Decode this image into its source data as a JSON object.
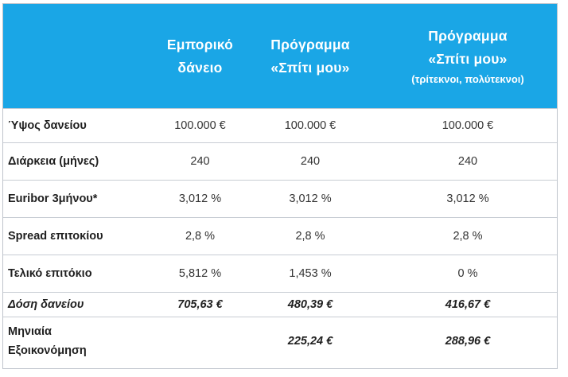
{
  "table": {
    "headers": [
      {
        "lines": [
          "",
          ""
        ],
        "sub": ""
      },
      {
        "lines": [
          "Εμπορικό",
          "δάνειο"
        ],
        "sub": ""
      },
      {
        "lines": [
          "Πρόγραμμα",
          "«Σπίτι μου»"
        ],
        "sub": ""
      },
      {
        "lines": [
          "Πρόγραμμα",
          "«Σπίτι μου»"
        ],
        "sub": "(τρίτεκνοι, πολύτεκνοι)"
      }
    ],
    "rows": [
      {
        "label": "Ύψος δανείου",
        "values": [
          "100.000 €",
          "100.000 €",
          "100.000 €"
        ]
      },
      {
        "label": "Διάρκεια (μήνες)",
        "values": [
          "240",
          "240",
          "240"
        ]
      },
      {
        "label": "Euribor 3μήνου*",
        "values": [
          "3,012 %",
          "3,012 %",
          "3,012 %"
        ]
      },
      {
        "label": "Spread επιτοκίου",
        "values": [
          "2,8 %",
          "2,8 %",
          "2,8 %"
        ]
      },
      {
        "label": "Τελικό επιτόκιο",
        "values": [
          "5,812 %",
          "1,453 %",
          "0 %"
        ]
      },
      {
        "label": "Δόση δανείου",
        "values": [
          "705,63 €",
          "480,39 €",
          "416,67 €"
        ]
      },
      {
        "label_lines": [
          "Μηνιαία",
          "Εξοικονόμηση"
        ],
        "values": [
          "",
          "225,24 €",
          "288,96 €"
        ]
      }
    ]
  },
  "colors": {
    "header_bg": "#1aa6e6",
    "header_text": "#ffffff",
    "border": "#c7ccd3"
  }
}
